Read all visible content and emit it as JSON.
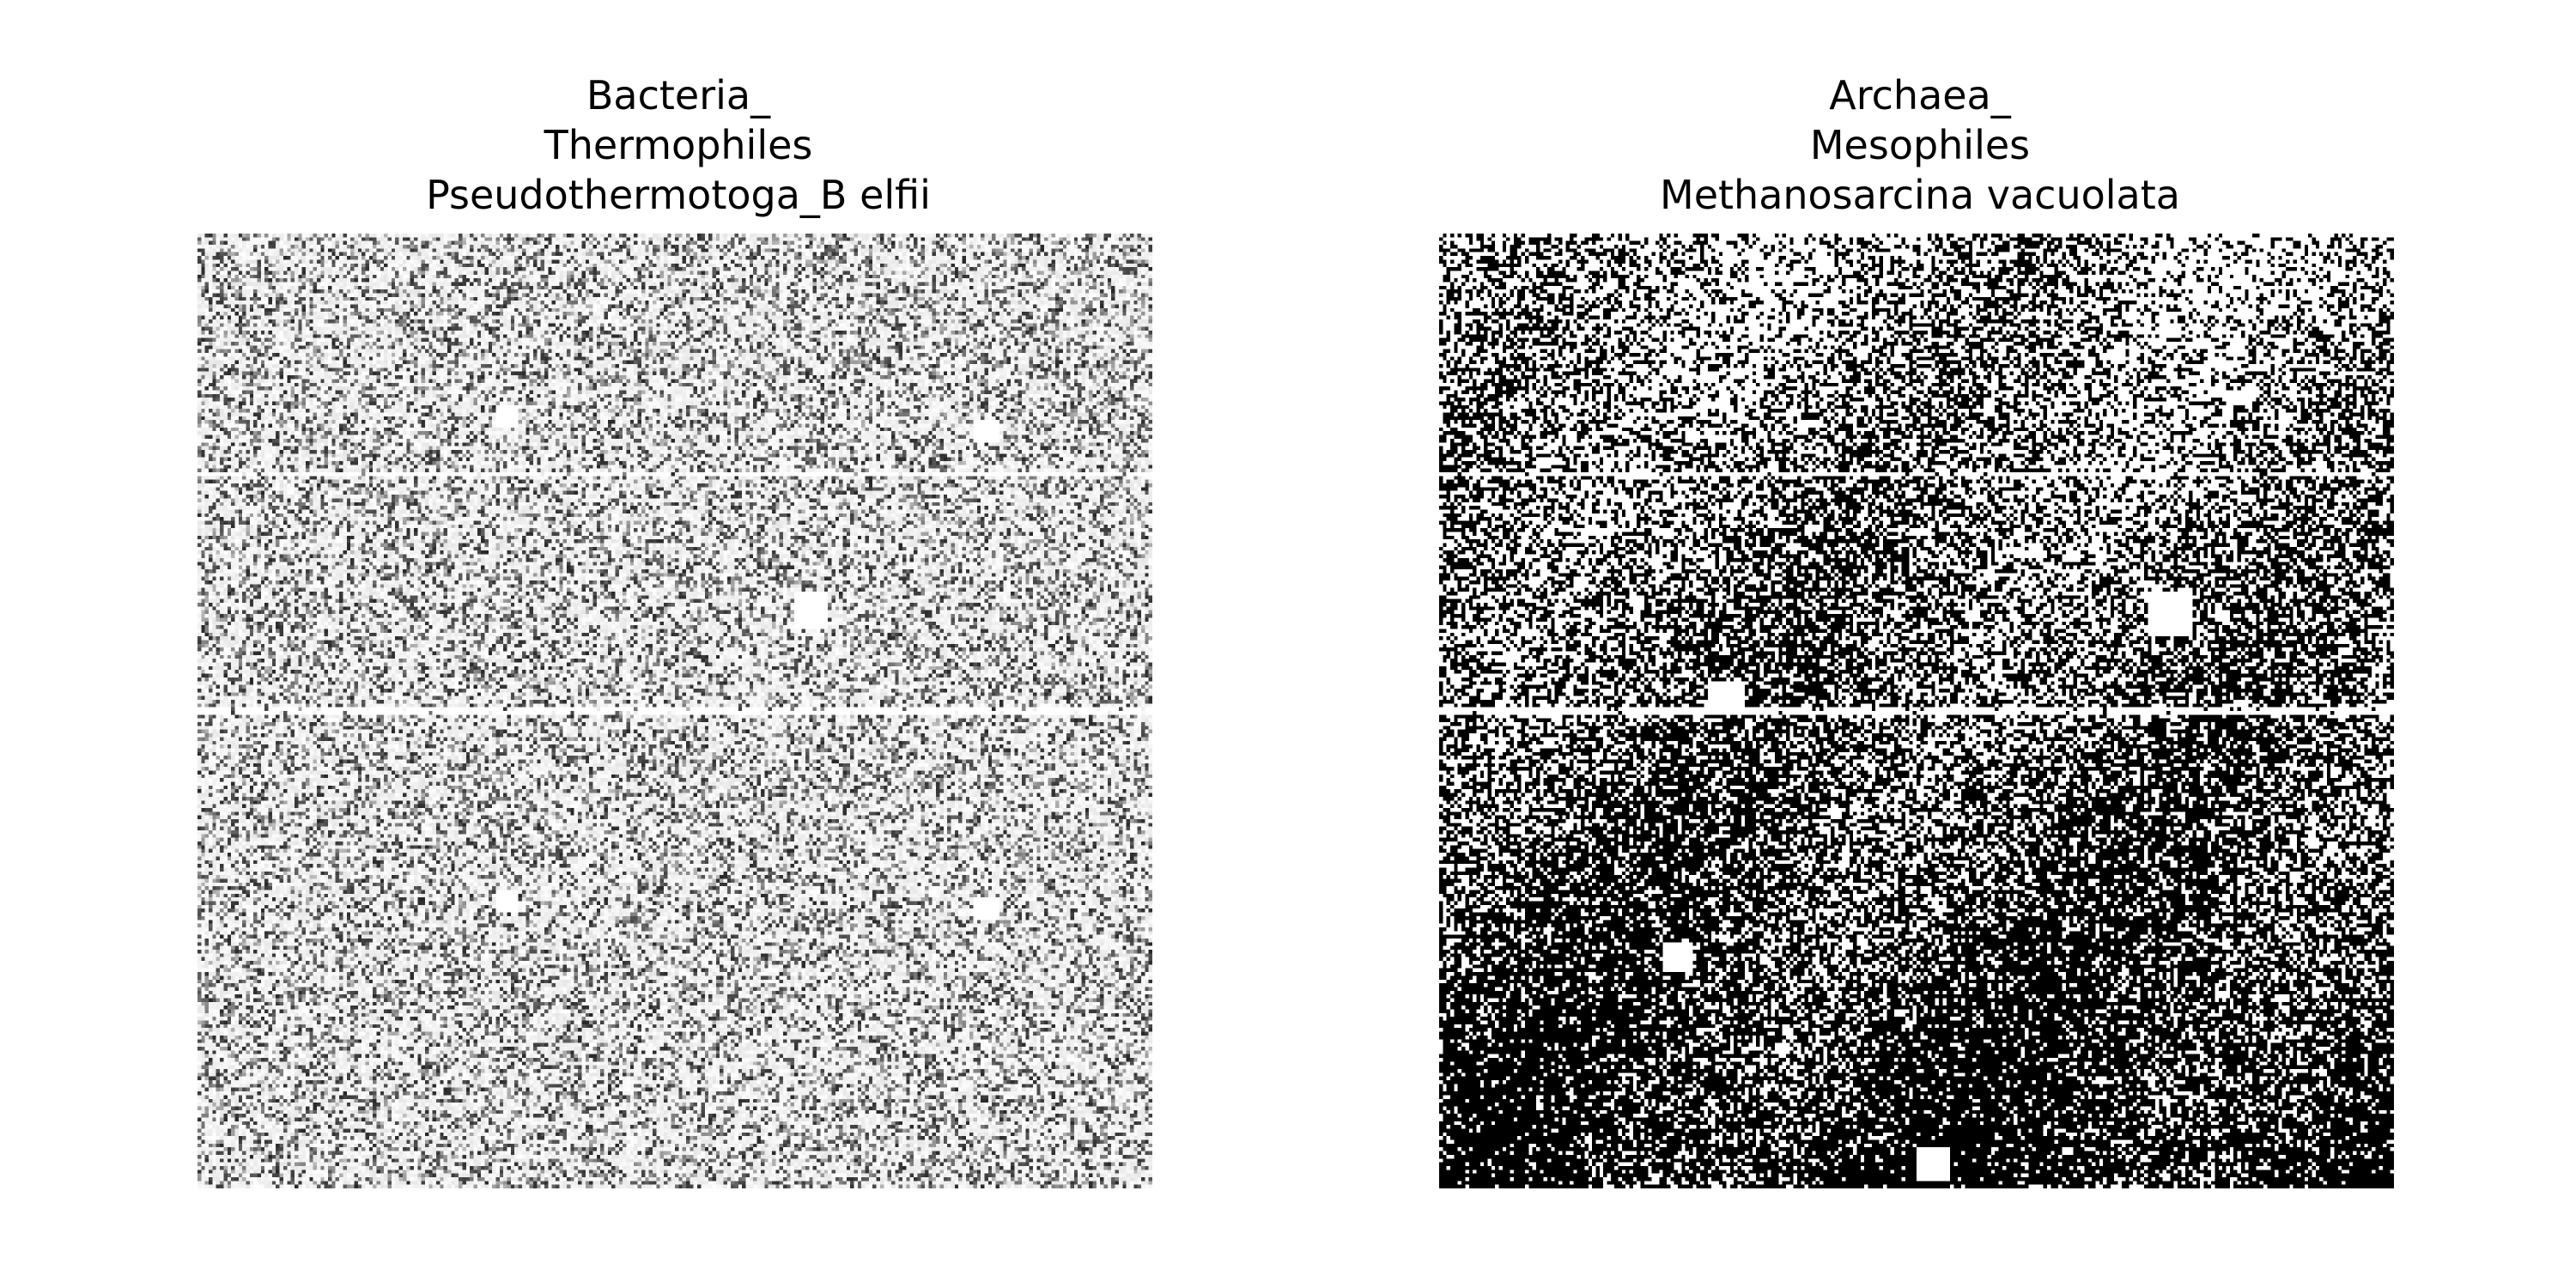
{
  "chart_data": [
    {
      "type": "heatmap",
      "title": [
        "Bacteria_",
        "Thermophiles",
        "Pseudothermotoga_B elfii"
      ],
      "xlabel": "",
      "ylabel": "",
      "axes": "off",
      "colormap": "grayscale",
      "grid_size": [
        256,
        256
      ],
      "appearance": "mostly light grey and white speckle with scattered grey-dark dots",
      "mean_intensity": 0.35
    },
    {
      "type": "heatmap",
      "title": [
        "Archaea_",
        "Mesophiles",
        "Methanosarcina vacuolata"
      ],
      "xlabel": "",
      "ylabel": "",
      "axes": "off",
      "colormap": "binary",
      "grid_size": [
        256,
        256
      ],
      "appearance": "high-contrast black and white speckle, denser black toward the bottom",
      "mean_intensity": 0.55
    }
  ]
}
